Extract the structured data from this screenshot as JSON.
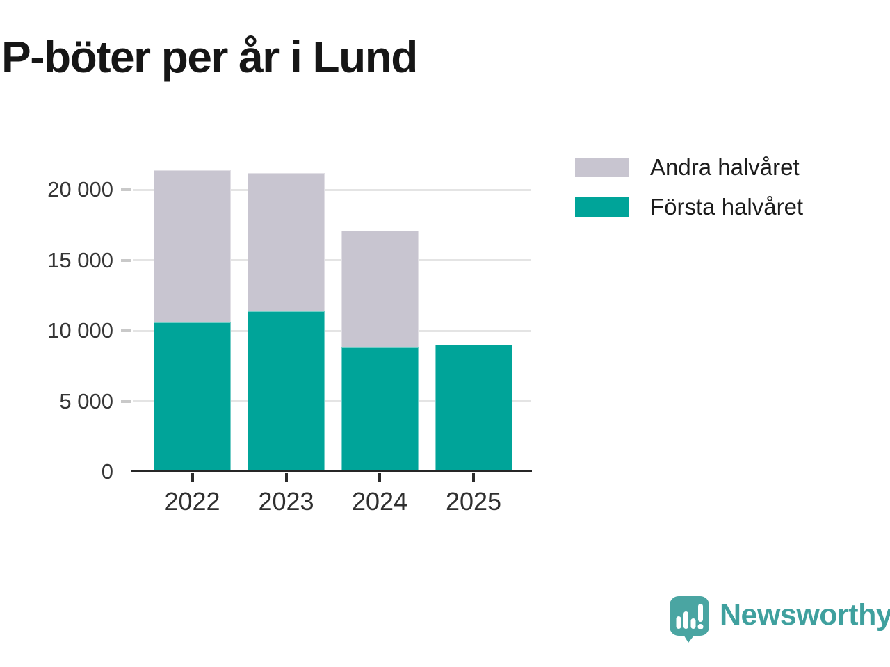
{
  "title": "P-böter per år i Lund",
  "legend": [
    {
      "label": "Andra halvåret",
      "color": "#c8c5d0"
    },
    {
      "label": "Första halvåret",
      "color": "#00a499"
    }
  ],
  "chart_data": {
    "type": "bar",
    "stacked": true,
    "title": "P-böter per år i Lund",
    "categories": [
      "2022",
      "2023",
      "2024",
      "2025"
    ],
    "series": [
      {
        "name": "Första halvåret",
        "color": "#00a499",
        "values": [
          10600,
          11400,
          8800,
          9000
        ]
      },
      {
        "name": "Andra halvåret",
        "color": "#c8c5d0",
        "values": [
          10800,
          9800,
          8300,
          0
        ]
      }
    ],
    "xlabel": "",
    "ylabel": "",
    "ylim": [
      0,
      22000
    ],
    "yticks": [
      0,
      5000,
      10000,
      15000,
      20000
    ],
    "ytick_labels": [
      "0",
      "5 000",
      "10 000",
      "15 000",
      "20 000"
    ],
    "grid": "horizontal",
    "legend_position": "top-right"
  },
  "branding": {
    "logo_text": "Newsworthy",
    "logo_text_color": "#3fa09e",
    "logo_icon": "bar-chart-speech-bubble-icon",
    "logo_icon_color": "#4aa5a2"
  }
}
